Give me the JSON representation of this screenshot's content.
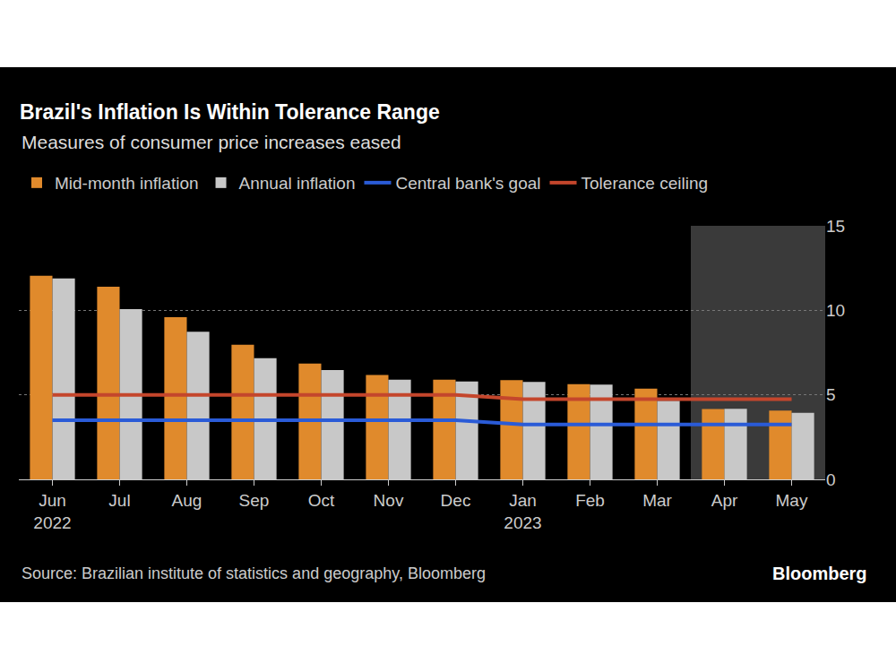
{
  "chart_data": {
    "type": "bar",
    "title": "Brazil's Inflation Is Within Tolerance Range",
    "subtitle": "Measures of consumer price increases eased",
    "categories": [
      "Jun 2022",
      "Jul",
      "Aug",
      "Sep",
      "Oct",
      "Nov",
      "Dec",
      "Jan 2023",
      "Feb",
      "Mar",
      "Apr",
      "May"
    ],
    "series": [
      {
        "name": "Mid-month inflation",
        "type": "bar",
        "color": "#e08a2c",
        "values": [
          12.04,
          11.39,
          9.6,
          7.96,
          6.85,
          6.17,
          5.9,
          5.87,
          5.63,
          5.36,
          4.16,
          4.07
        ]
      },
      {
        "name": "Annual inflation",
        "type": "bar",
        "color": "#c8c8c8",
        "values": [
          11.89,
          10.07,
          8.73,
          7.17,
          6.47,
          5.9,
          5.79,
          5.77,
          5.6,
          4.65,
          4.18,
          3.94
        ]
      },
      {
        "name": "Central bank's goal",
        "type": "line",
        "color": "#2a5bd7",
        "values": [
          3.5,
          3.5,
          3.5,
          3.5,
          3.5,
          3.5,
          3.5,
          3.25,
          3.25,
          3.25,
          3.25,
          3.25
        ]
      },
      {
        "name": "Tolerance ceiling",
        "type": "line",
        "color": "#c4462c",
        "values": [
          5.0,
          5.0,
          5.0,
          5.0,
          5.0,
          5.0,
          5.0,
          4.75,
          4.75,
          4.75,
          4.75,
          4.75
        ]
      }
    ],
    "ylim": [
      0,
      15
    ],
    "yticks": [
      0,
      5,
      10,
      15
    ],
    "grid": true,
    "legend": "top left",
    "source": "Source: Brazilian institute of statistics and geography, Bloomberg",
    "credit": "Bloomberg"
  }
}
